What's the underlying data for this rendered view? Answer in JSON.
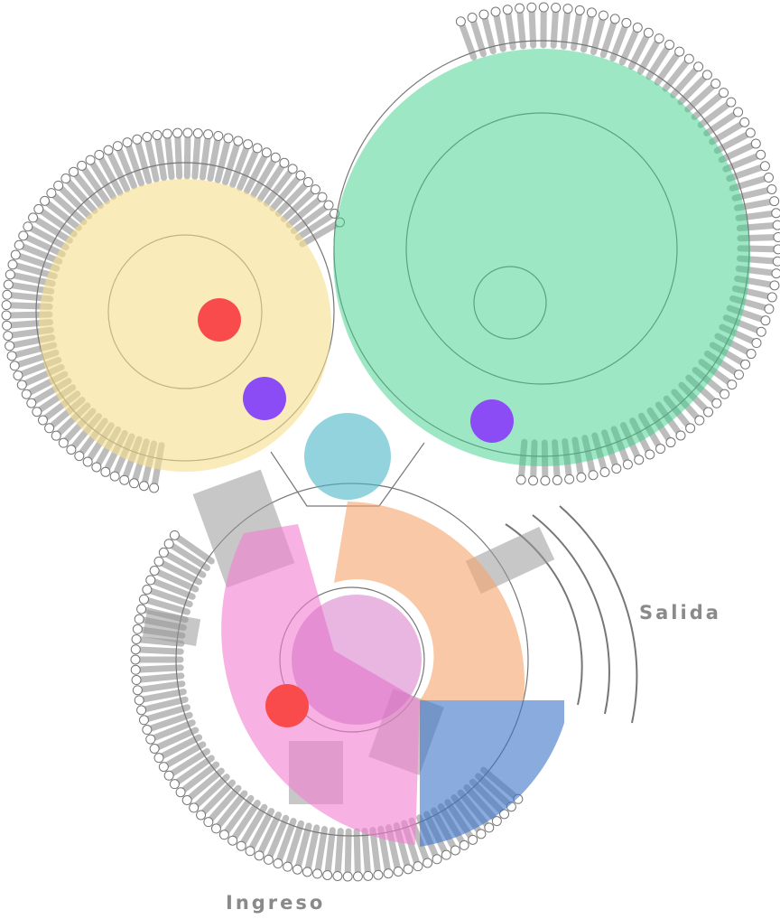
{
  "labels": {
    "exit": "Salida",
    "entrance": "Ingreso"
  }
}
